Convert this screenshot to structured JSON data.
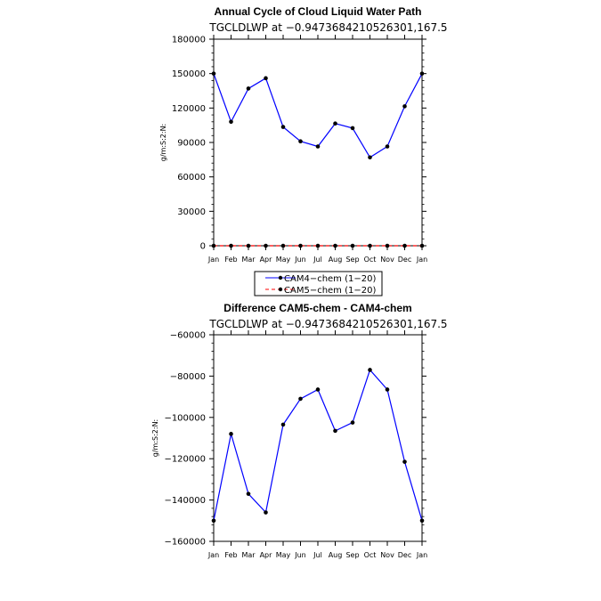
{
  "chart_data": [
    {
      "type": "line",
      "title": "Annual Cycle of Cloud Liquid Water Path",
      "subtitle": "TGCLDLWP  at  −0.9473684210526301,167.5",
      "ylabel": "g/m:S:2:N:",
      "ylim": [
        0,
        180000
      ],
      "yticks": [
        "0",
        "30000",
        "60000",
        "90000",
        "120000",
        "150000",
        "180000"
      ],
      "ytick_values": [
        0,
        30000,
        60000,
        90000,
        120000,
        150000,
        180000
      ],
      "categories": [
        "Jan",
        "Feb",
        "Mar",
        "Apr",
        "May",
        "Jun",
        "Jul",
        "Aug",
        "Sep",
        "Oct",
        "Nov",
        "Dec",
        "Jan"
      ],
      "series": [
        {
          "name": "CAM4−chem  (1−20)",
          "color": "#0000ff",
          "dash": "solid",
          "values": [
            150000,
            108000,
            137000,
            146000,
            103500,
            91000,
            86500,
            106500,
            102500,
            77000,
            86500,
            121500,
            150000
          ]
        },
        {
          "name": "CAM5−chem  (1−20)",
          "color": "#ff0000",
          "dash": "dashed",
          "values": [
            0,
            0,
            0,
            0,
            0,
            0,
            0,
            0,
            0,
            0,
            0,
            0,
            0
          ]
        }
      ],
      "legend": "bottom-center"
    },
    {
      "type": "line",
      "title": "Difference CAM5-chem - CAM4-chem",
      "subtitle": "TGCLDLWP  at  −0.9473684210526301,167.5",
      "ylabel": "g/m:S:2:N:",
      "ylim": [
        -160000,
        -60000
      ],
      "yticks": [
        "−160000",
        "−140000",
        "−120000",
        "−100000",
        "−80000",
        "−60000"
      ],
      "ytick_values": [
        -160000,
        -140000,
        -120000,
        -100000,
        -80000,
        -60000
      ],
      "categories": [
        "Jan",
        "Feb",
        "Mar",
        "Apr",
        "May",
        "Jun",
        "Jul",
        "Aug",
        "Sep",
        "Oct",
        "Nov",
        "Dec",
        "Jan"
      ],
      "series": [
        {
          "name": "CAM5−chem − CAM4−chem",
          "color": "#0000ff",
          "dash": "solid",
          "values": [
            -150000,
            -108000,
            -137000,
            -146000,
            -103500,
            -91000,
            -86500,
            -106500,
            -102500,
            -77000,
            -86500,
            -121500,
            -150000
          ]
        }
      ]
    }
  ]
}
